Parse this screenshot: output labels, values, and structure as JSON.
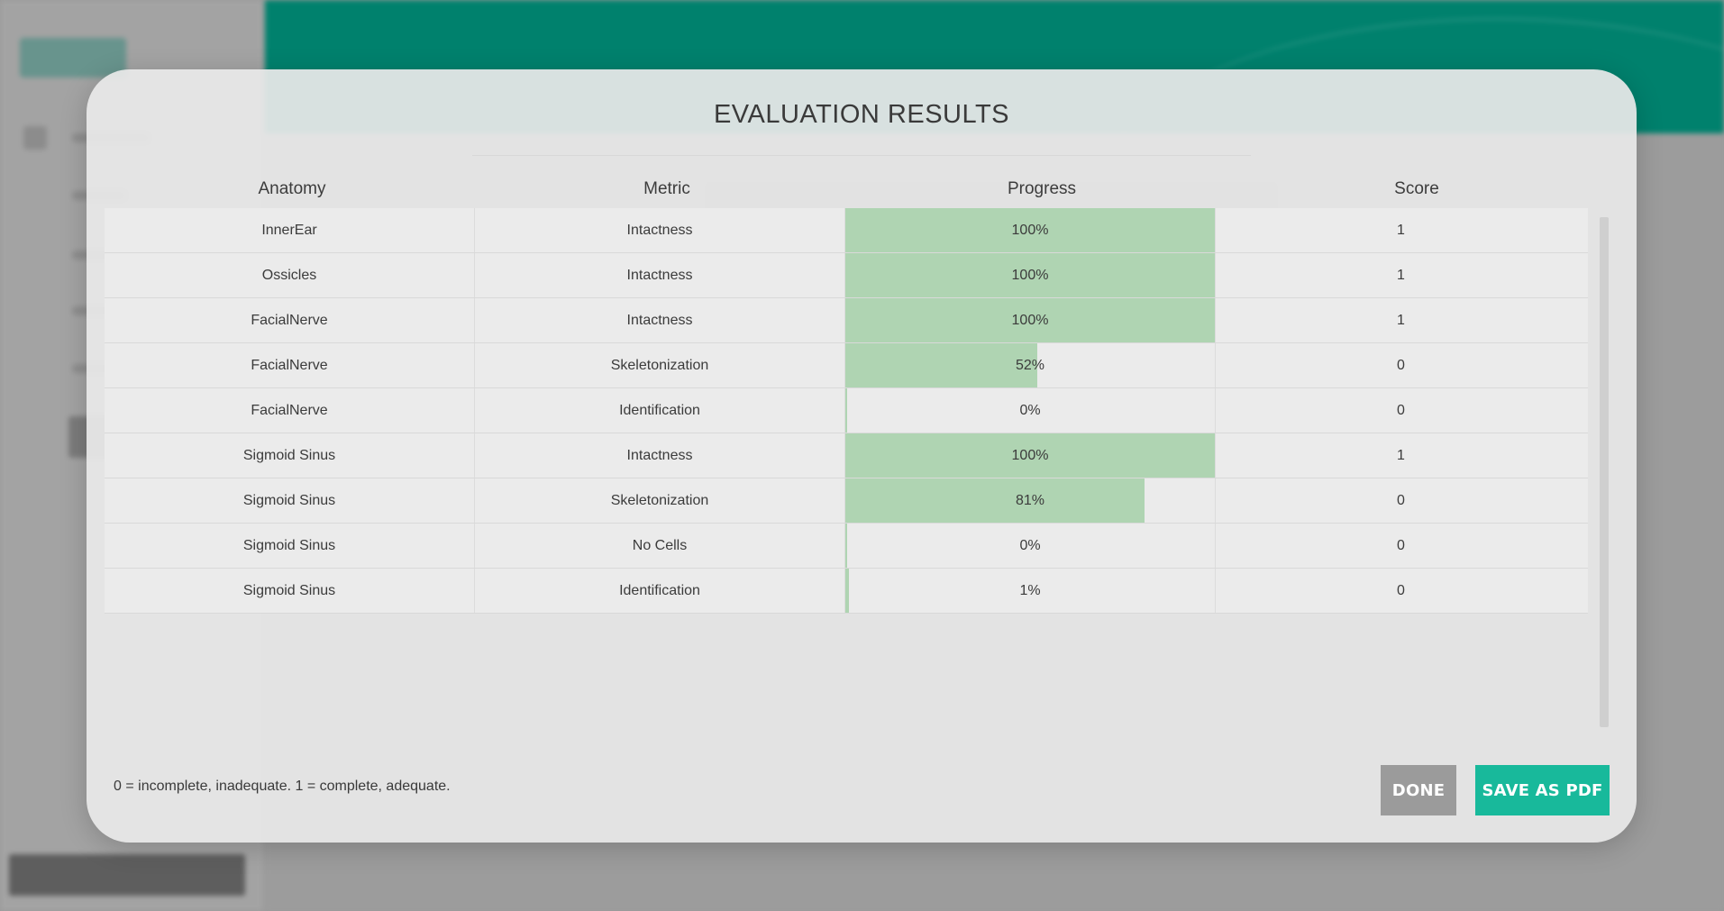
{
  "modal": {
    "title": "EVALUATION RESULTS",
    "columns": [
      "Anatomy",
      "Metric",
      "Progress",
      "Score"
    ],
    "rows": [
      {
        "anatomy": "InnerEar",
        "metric": "Intactness",
        "progress": "100%",
        "progress_value": 100,
        "score": "1"
      },
      {
        "anatomy": "Ossicles",
        "metric": "Intactness",
        "progress": "100%",
        "progress_value": 100,
        "score": "1"
      },
      {
        "anatomy": "FacialNerve",
        "metric": "Intactness",
        "progress": "100%",
        "progress_value": 100,
        "score": "1"
      },
      {
        "anatomy": "FacialNerve",
        "metric": "Skeletonization",
        "progress": "52%",
        "progress_value": 52,
        "score": "0"
      },
      {
        "anatomy": "FacialNerve",
        "metric": "Identification",
        "progress": "0%",
        "progress_value": 0,
        "score": "0"
      },
      {
        "anatomy": "Sigmoid Sinus",
        "metric": "Intactness",
        "progress": "100%",
        "progress_value": 100,
        "score": "1"
      },
      {
        "anatomy": "Sigmoid Sinus",
        "metric": "Skeletonization",
        "progress": "81%",
        "progress_value": 81,
        "score": "0"
      },
      {
        "anatomy": "Sigmoid Sinus",
        "metric": "No Cells",
        "progress": "0%",
        "progress_value": 0,
        "score": "0"
      },
      {
        "anatomy": "Sigmoid Sinus",
        "metric": "Identification",
        "progress": "1%",
        "progress_value": 1,
        "score": "0"
      }
    ],
    "legend_note": "0 = incomplete, inadequate. 1 = complete, adequate.",
    "done_label": "DONE",
    "save_pdf_label": "SAVE AS PDF"
  },
  "colors": {
    "accent": "#18b99b",
    "banner": "#00816d",
    "progress_fill": "#afd4b2",
    "done_button": "#9b9b9b"
  }
}
